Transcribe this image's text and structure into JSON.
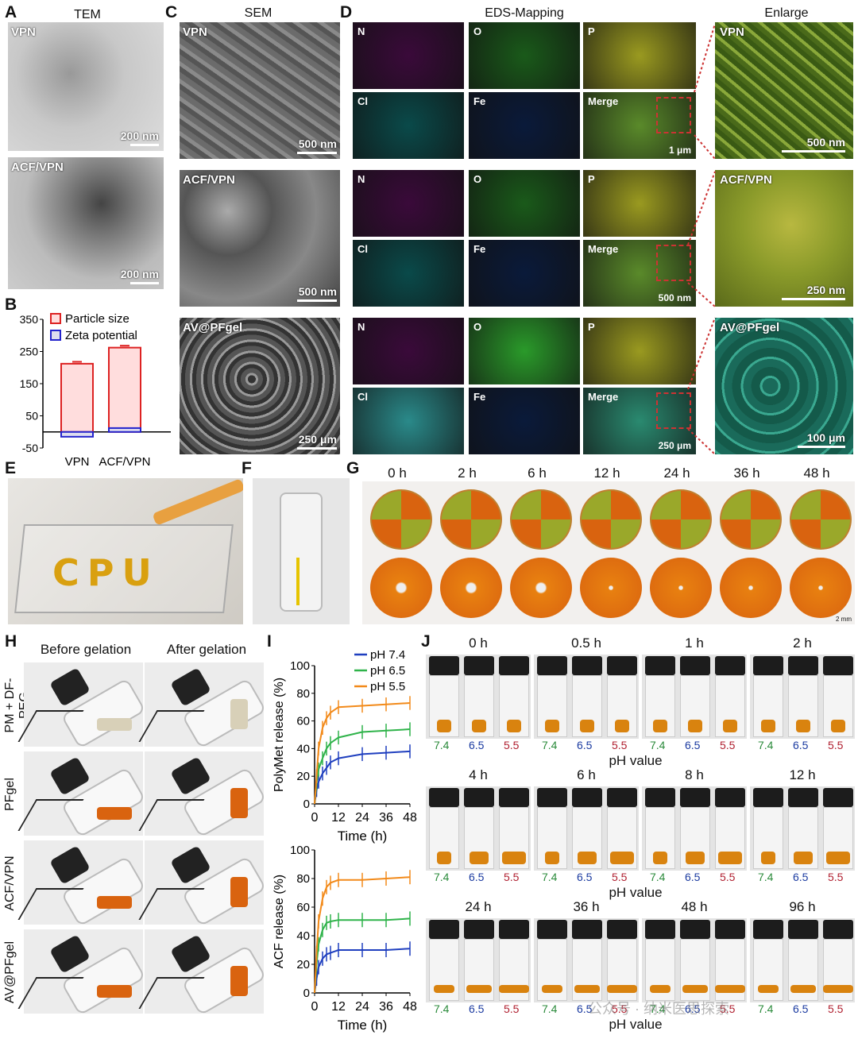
{
  "panels": [
    "A",
    "B",
    "C",
    "D",
    "E",
    "F",
    "G",
    "H",
    "I",
    "J"
  ],
  "headers": {
    "tem": "TEM",
    "sem": "SEM",
    "eds": "EDS-Mapping",
    "enlarge": "Enlarge"
  },
  "tem": {
    "labels": [
      "VPN",
      "ACF/VPN"
    ],
    "scale": [
      "200 nm",
      "200 nm"
    ]
  },
  "sem": {
    "labels": [
      "VPN",
      "ACF/VPN",
      "AV@PFgel"
    ],
    "scale": [
      "500 nm",
      "500 nm",
      "250 μm"
    ]
  },
  "eds": {
    "channels": [
      "N",
      "O",
      "P",
      "Cl",
      "Fe",
      "Merge"
    ],
    "merge_scale": [
      "1 μm",
      "500 nm",
      "250 μm"
    ],
    "enlarge_labels": [
      "VPN",
      "ACF/VPN",
      "AV@PFgel"
    ],
    "enlarge_scale": [
      "500 nm",
      "250 nm",
      "100 μm"
    ],
    "colors": [
      "#3a0a3a",
      "#1a5a1a",
      "#9a9a20",
      "#0a4a4a",
      "#0a1a3a",
      "#5a8a2a"
    ]
  },
  "chart_b": {
    "legend": [
      "Particle size",
      "Zeta potential"
    ],
    "yticks": [
      "350",
      "250",
      "150",
      "50",
      "-50"
    ],
    "categories": [
      "VPN",
      "ACF/VPN"
    ]
  },
  "g": {
    "times": [
      "0 h",
      "2 h",
      "6 h",
      "12 h",
      "24 h",
      "36 h",
      "48 h"
    ],
    "scale": "2 mm"
  },
  "h": {
    "cols": [
      "Before gelation",
      "After gelation"
    ],
    "rows": [
      "PM + DF-PEG",
      "PFgel",
      "ACF/VPN",
      "AV@PFgel"
    ]
  },
  "chart_i": {
    "legend": [
      "pH 7.4",
      "pH 6.5",
      "pH 5.5"
    ],
    "colors": [
      "#1f3fbf",
      "#2fb34a",
      "#f28a1a"
    ],
    "xticks": [
      "0",
      "12",
      "24",
      "36",
      "48"
    ],
    "xlabel": "Time (h)",
    "top": {
      "ylabel": "PolyMet release (%)",
      "yticks": [
        "100",
        "80",
        "60",
        "40",
        "20",
        "0"
      ]
    },
    "bottom": {
      "ylabel": "ACF release (%)",
      "yticks": [
        "100",
        "80",
        "60",
        "40",
        "20",
        "0"
      ]
    }
  },
  "j": {
    "rows": [
      [
        "0 h",
        "0.5 h",
        "1 h",
        "2 h"
      ],
      [
        "4 h",
        "6 h",
        "8 h",
        "12 h"
      ],
      [
        "24 h",
        "36 h",
        "48 h",
        "96 h"
      ]
    ],
    "ph": [
      "7.4",
      "6.5",
      "5.5"
    ],
    "xlabel": "pH value",
    "watermark": "公众号 · 纳米医思探索"
  },
  "chart_data": [
    {
      "type": "bar",
      "title": "",
      "categories": [
        "VPN",
        "ACF/VPN"
      ],
      "series": [
        {
          "name": "Particle size",
          "values": [
            212,
            262
          ]
        },
        {
          "name": "Zeta potential",
          "values": [
            -15,
            12
          ]
        }
      ],
      "ylim": [
        -50,
        350
      ]
    },
    {
      "type": "line",
      "x": [
        0,
        1,
        2,
        4,
        6,
        8,
        12,
        24,
        36,
        48
      ],
      "xlabel": "Time (h)",
      "ylabel": "PolyMet release (%)",
      "ylim": [
        0,
        100
      ],
      "series": [
        {
          "name": "pH 7.4",
          "values": [
            0,
            10,
            16,
            22,
            26,
            30,
            33,
            36,
            37,
            38
          ]
        },
        {
          "name": "pH 6.5",
          "values": [
            0,
            15,
            25,
            33,
            40,
            44,
            48,
            52,
            53,
            54
          ]
        },
        {
          "name": "pH 5.5",
          "values": [
            0,
            20,
            40,
            55,
            62,
            66,
            70,
            71,
            72,
            73
          ]
        }
      ]
    },
    {
      "type": "line",
      "x": [
        0,
        1,
        2,
        4,
        6,
        8,
        12,
        24,
        36,
        48
      ],
      "xlabel": "Time (h)",
      "ylabel": "ACF release (%)",
      "ylim": [
        0,
        100
      ],
      "series": [
        {
          "name": "pH 7.4",
          "values": [
            0,
            10,
            18,
            24,
            27,
            28,
            30,
            30,
            30,
            31
          ]
        },
        {
          "name": "pH 6.5",
          "values": [
            0,
            20,
            34,
            44,
            49,
            50,
            51,
            51,
            51,
            52
          ]
        },
        {
          "name": "pH 5.5",
          "values": [
            0,
            28,
            50,
            66,
            74,
            77,
            79,
            79,
            80,
            81
          ]
        }
      ]
    }
  ]
}
